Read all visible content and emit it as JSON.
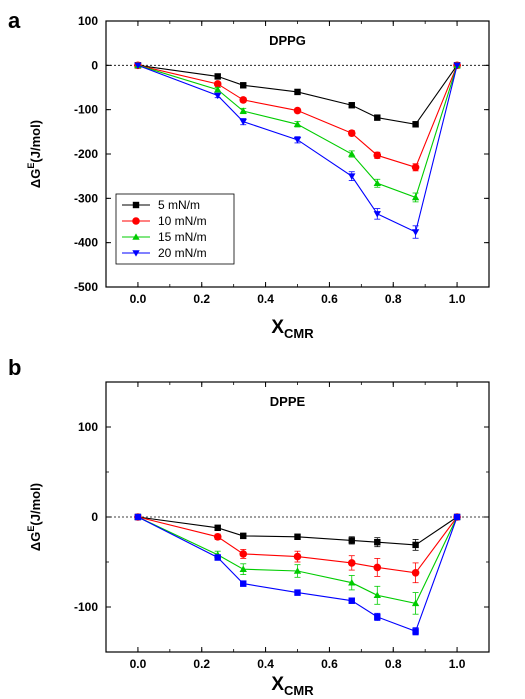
{
  "chart_data": [
    {
      "panel": "a",
      "type": "line",
      "title": "DPPG",
      "xlabel_main": "X",
      "xlabel_sub": "CMR",
      "ylabel_main": "ΔG",
      "ylabel_sup": "E",
      "ylabel_rest": "(J/mol)",
      "xlim": [
        -0.1,
        1.1
      ],
      "ylim": [
        -500,
        100
      ],
      "xticks": [
        "0.0",
        "0.2",
        "0.4",
        "0.6",
        "0.8",
        "1.0"
      ],
      "yticks": [
        "100",
        "0",
        "-100",
        "-200",
        "-300",
        "-400",
        "-500"
      ],
      "legend": true,
      "legend_position": "lower-left",
      "zero_line": true,
      "x": [
        0.0,
        0.25,
        0.33,
        0.5,
        0.67,
        0.75,
        0.87,
        1.0
      ],
      "series": [
        {
          "name": "5  mN/m",
          "color": "#000000",
          "marker": "square",
          "values": [
            0,
            -25,
            -45,
            -60,
            -90,
            -118,
            -133,
            0
          ],
          "errors": [
            0,
            4,
            4,
            4,
            5,
            5,
            6,
            0
          ]
        },
        {
          "name": "10  mN/m",
          "color": "#ff0000",
          "marker": "circle",
          "values": [
            0,
            -42,
            -78,
            -102,
            -153,
            -203,
            -230,
            0
          ],
          "errors": [
            0,
            4,
            5,
            5,
            6,
            7,
            8,
            0
          ]
        },
        {
          "name": "15  mN/m",
          "color": "#00cc00",
          "marker": "triangle-up",
          "values": [
            0,
            -55,
            -103,
            -133,
            -200,
            -266,
            -298,
            0
          ],
          "errors": [
            0,
            5,
            6,
            6,
            7,
            9,
            10,
            0
          ]
        },
        {
          "name": "20  mN/m",
          "color": "#0000ff",
          "marker": "triangle-down",
          "values": [
            0,
            -68,
            -127,
            -168,
            -250,
            -335,
            -376,
            0
          ],
          "errors": [
            0,
            5,
            7,
            7,
            10,
            12,
            14,
            0
          ]
        }
      ]
    },
    {
      "panel": "b",
      "type": "line",
      "title": "DPPE",
      "xlabel_main": "X",
      "xlabel_sub": "CMR",
      "ylabel_main": "ΔG",
      "ylabel_sup": "E",
      "ylabel_rest": "(J/mol)",
      "xlim": [
        -0.1,
        1.1
      ],
      "ylim": [
        -150,
        150
      ],
      "xticks": [
        "0.0",
        "0.2",
        "0.4",
        "0.6",
        "0.8",
        "1.0"
      ],
      "yticks": [
        "100",
        "0",
        "-100"
      ],
      "legend": false,
      "zero_line": true,
      "x": [
        0.0,
        0.25,
        0.33,
        0.5,
        0.67,
        0.75,
        0.87,
        1.0
      ],
      "series": [
        {
          "color": "#000000",
          "marker": "square",
          "values": [
            0,
            -12,
            -21,
            -22,
            -26,
            -28,
            -31,
            0
          ],
          "errors": [
            0,
            2,
            3,
            3,
            4,
            5,
            6,
            0
          ]
        },
        {
          "color": "#ff0000",
          "marker": "circle",
          "values": [
            0,
            -22,
            -41,
            -44,
            -51,
            -56,
            -62,
            0
          ],
          "errors": [
            0,
            3,
            5,
            6,
            8,
            10,
            11,
            0
          ]
        },
        {
          "color": "#00cc00",
          "marker": "triangle-up",
          "values": [
            0,
            -42,
            -58,
            -60,
            -73,
            -87,
            -96,
            0
          ],
          "errors": [
            0,
            4,
            6,
            7,
            8,
            10,
            12,
            0
          ]
        },
        {
          "color": "#0000ff",
          "marker": "square",
          "values": [
            0,
            -45,
            -74,
            -84,
            -93,
            -111,
            -127,
            0
          ],
          "errors": [
            0,
            3,
            3,
            3,
            3,
            4,
            4,
            0
          ]
        }
      ]
    }
  ]
}
